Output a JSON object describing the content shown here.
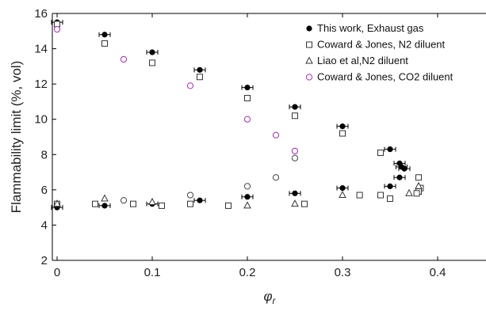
{
  "chart_data": {
    "type": "scatter",
    "xlabel": "φ",
    "xlabel_sub": "r",
    "ylabel": "Flammability limit (%, vol)",
    "xlim": [
      -0.005,
      0.45
    ],
    "ylim": [
      2,
      16
    ],
    "x_ticks": [
      0,
      0.1,
      0.2,
      0.3,
      0.4
    ],
    "x_tick_labels": [
      "0",
      "0.1",
      "0.2",
      "0.3",
      "0.4"
    ],
    "y_ticks": [
      2,
      4,
      6,
      8,
      10,
      12,
      14,
      16
    ],
    "y_tick_labels": [
      "2",
      "4",
      "6",
      "8",
      "10",
      "12",
      "14",
      "16"
    ],
    "grid": false,
    "legend_position": "top-right",
    "series": [
      {
        "name": "This work, Exhaust gas",
        "marker": "filled-circle-errorbar",
        "color": "#000000",
        "x": [
          0,
          0.05,
          0.1,
          0.15,
          0.2,
          0.25,
          0.3,
          0.35,
          0.36,
          0.362,
          0.365,
          0.36,
          0.35,
          0.3,
          0.25,
          0.2,
          0.15,
          0.1,
          0.05,
          0
        ],
        "y": [
          15.5,
          14.8,
          13.8,
          12.8,
          11.8,
          10.7,
          9.6,
          8.3,
          7.5,
          7.3,
          7.2,
          6.7,
          6.2,
          6.1,
          5.8,
          5.6,
          5.4,
          5.2,
          5.1,
          5.0
        ]
      },
      {
        "name": "Coward & Jones, N2 diluent",
        "marker": "open-square",
        "color": "#333333",
        "x": [
          0,
          0.05,
          0.1,
          0.15,
          0.2,
          0.25,
          0.3,
          0.34,
          0.38,
          0.382,
          0.38,
          0.378,
          0.35,
          0.34,
          0.318,
          0.26,
          0.18,
          0.14,
          0.11,
          0.08,
          0.04,
          0
        ],
        "y": [
          15.4,
          14.3,
          13.2,
          12.4,
          11.2,
          10.2,
          9.2,
          8.1,
          6.7,
          6.1,
          5.9,
          5.8,
          5.5,
          5.7,
          5.7,
          5.2,
          5.1,
          5.2,
          5.1,
          5.2,
          5.2,
          5.2
        ]
      },
      {
        "name": "Liao et al,N2 diluent",
        "marker": "open-triangle",
        "color": "#333333",
        "x": [
          0,
          0.05,
          0.1,
          0.2,
          0.25,
          0.3,
          0.37,
          0.38
        ],
        "y": [
          5.2,
          5.5,
          5.3,
          5.1,
          5.2,
          5.7,
          5.8,
          6.2
        ]
      },
      {
        "name": "Coward & Jones, CO2 diluent",
        "marker": "open-circle",
        "color": "#a030b0",
        "x": [
          0,
          0.07,
          0.14,
          0.2,
          0.23,
          0.25
        ],
        "y": [
          15.1,
          13.4,
          11.9,
          10.0,
          9.1,
          8.2
        ]
      },
      {
        "name": "",
        "marker": "open-circle",
        "color": "#444444",
        "x": [
          0.07,
          0.14,
          0.2,
          0.23,
          0.25
        ],
        "y": [
          5.4,
          5.7,
          6.2,
          6.7,
          7.8
        ]
      }
    ]
  }
}
